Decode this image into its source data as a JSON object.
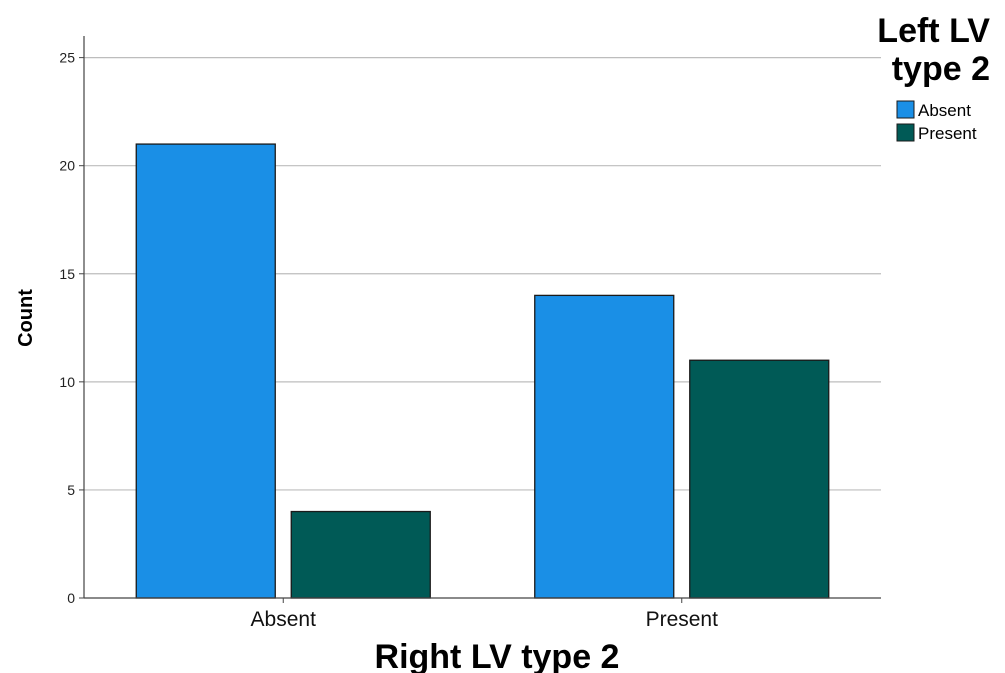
{
  "chart_data": {
    "type": "bar",
    "categories": [
      "Absent",
      "Present"
    ],
    "series": [
      {
        "name": "Absent",
        "values": [
          21,
          14
        ],
        "color": "#1a8fe6"
      },
      {
        "name": "Present",
        "values": [
          4,
          11
        ],
        "color": "#005a56"
      }
    ],
    "xlabel": "Right LV type 2",
    "ylabel": "Count",
    "legend_title": [
      "Left LV",
      "type 2"
    ],
    "ylim": [
      0,
      26
    ],
    "yticks": [
      0,
      5,
      10,
      15,
      20,
      25
    ],
    "grid": true,
    "legend_position": "top-right"
  }
}
